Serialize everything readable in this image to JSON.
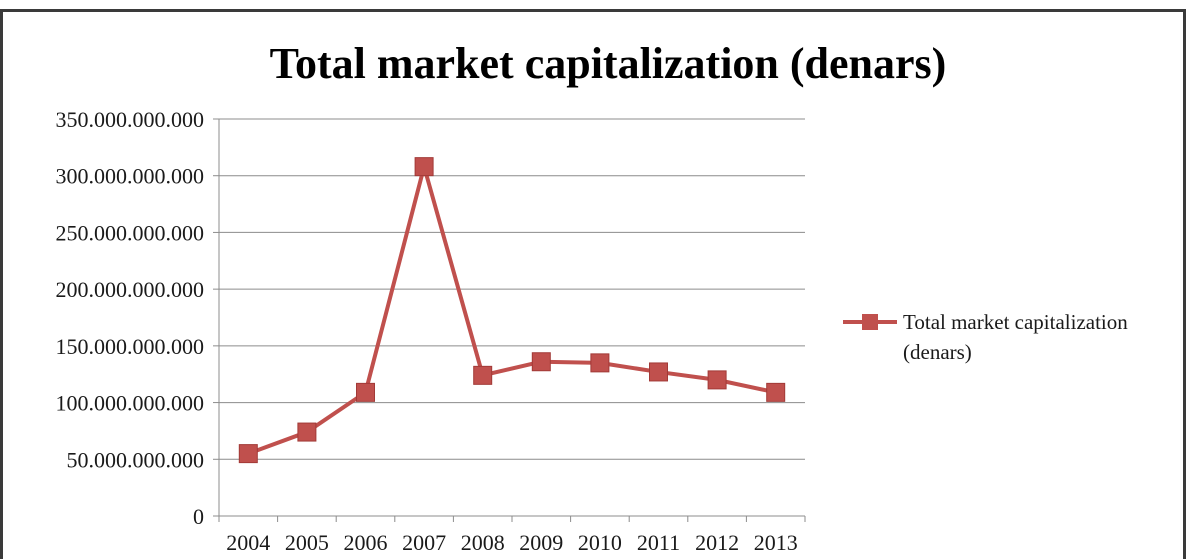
{
  "chart_data": {
    "type": "line",
    "title": "Total market capitalization (denars)",
    "xlabel": "",
    "ylabel": "",
    "categories": [
      "2004",
      "2005",
      "2006",
      "2007",
      "2008",
      "2009",
      "2010",
      "2011",
      "2012",
      "2013"
    ],
    "series": [
      {
        "name": "Total market capitalization (denars)",
        "legend_lines": [
          "Total market capitalization",
          "(denars)"
        ],
        "color": "#c0504d",
        "marker": "square",
        "values": [
          55000000000,
          74000000000,
          109000000000,
          308000000000,
          124000000000,
          136000000000,
          135000000000,
          127000000000,
          120000000000,
          109000000000
        ]
      }
    ],
    "y_ticks": [
      {
        "value": 0,
        "label": "0"
      },
      {
        "value": 50000000000,
        "label": "50.000.000.000"
      },
      {
        "value": 100000000000,
        "label": "100.000.000.000"
      },
      {
        "value": 150000000000,
        "label": "150.000.000.000"
      },
      {
        "value": 200000000000,
        "label": "200.000.000.000"
      },
      {
        "value": 250000000000,
        "label": "250.000.000.000"
      },
      {
        "value": 300000000000,
        "label": "300.000.000.000"
      },
      {
        "value": 350000000000,
        "label": "350.000.000.000"
      }
    ],
    "ylim": [
      0,
      350000000000
    ],
    "grid": "horizontal",
    "legend_position": "right"
  }
}
